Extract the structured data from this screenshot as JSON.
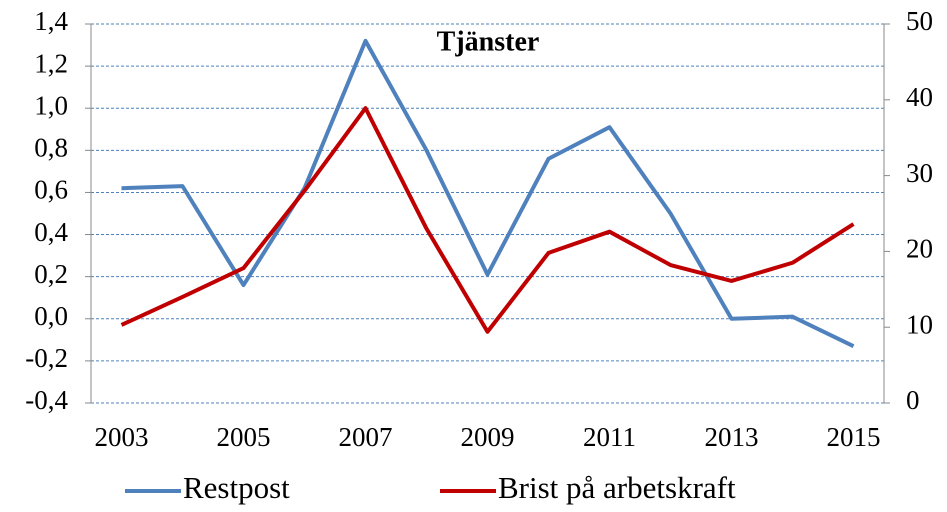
{
  "chart_data": {
    "type": "line",
    "title": "Tjänster",
    "categories": [
      "2003",
      null,
      "2005",
      null,
      "2007",
      null,
      "2009",
      null,
      "2011",
      null,
      "2013",
      null,
      "2015"
    ],
    "series": [
      {
        "name": "Restpost",
        "color": "#4f81bd",
        "values": [
          0.62,
          0.63,
          0.16,
          0.62,
          1.32,
          0.8,
          0.21,
          0.76,
          0.91,
          0.5,
          0.0,
          0.01,
          -0.13
        ]
      },
      {
        "name": "Brist på arbetskraft",
        "color": "#c00000",
        "axis": "y2",
        "values": [
          10.3,
          14,
          17.8,
          28,
          38.9,
          23,
          9.4,
          19.8,
          22.6,
          18.2,
          16.1,
          18.5,
          23.6
        ]
      }
    ],
    "ylim": [
      -0.4,
      1.4
    ],
    "yticks": [
      {
        "value": -0.4,
        "label": "-0,4"
      },
      {
        "value": -0.2,
        "label": "-0,2"
      },
      {
        "value": 0,
        "label": "0,0"
      },
      {
        "value": 0.2,
        "label": "0,2"
      },
      {
        "value": 0.4,
        "label": "0,4"
      },
      {
        "value": 0.6,
        "label": "0,6"
      },
      {
        "value": 0.8,
        "label": "0,8"
      },
      {
        "value": 1.0,
        "label": "1,0"
      },
      {
        "value": 1.2,
        "label": "1,2"
      },
      {
        "value": 1.4,
        "label": "1,4"
      }
    ],
    "y2lim": [
      0,
      50
    ],
    "y2ticks": [
      0,
      10,
      20,
      30,
      40,
      50
    ],
    "grid": true
  }
}
